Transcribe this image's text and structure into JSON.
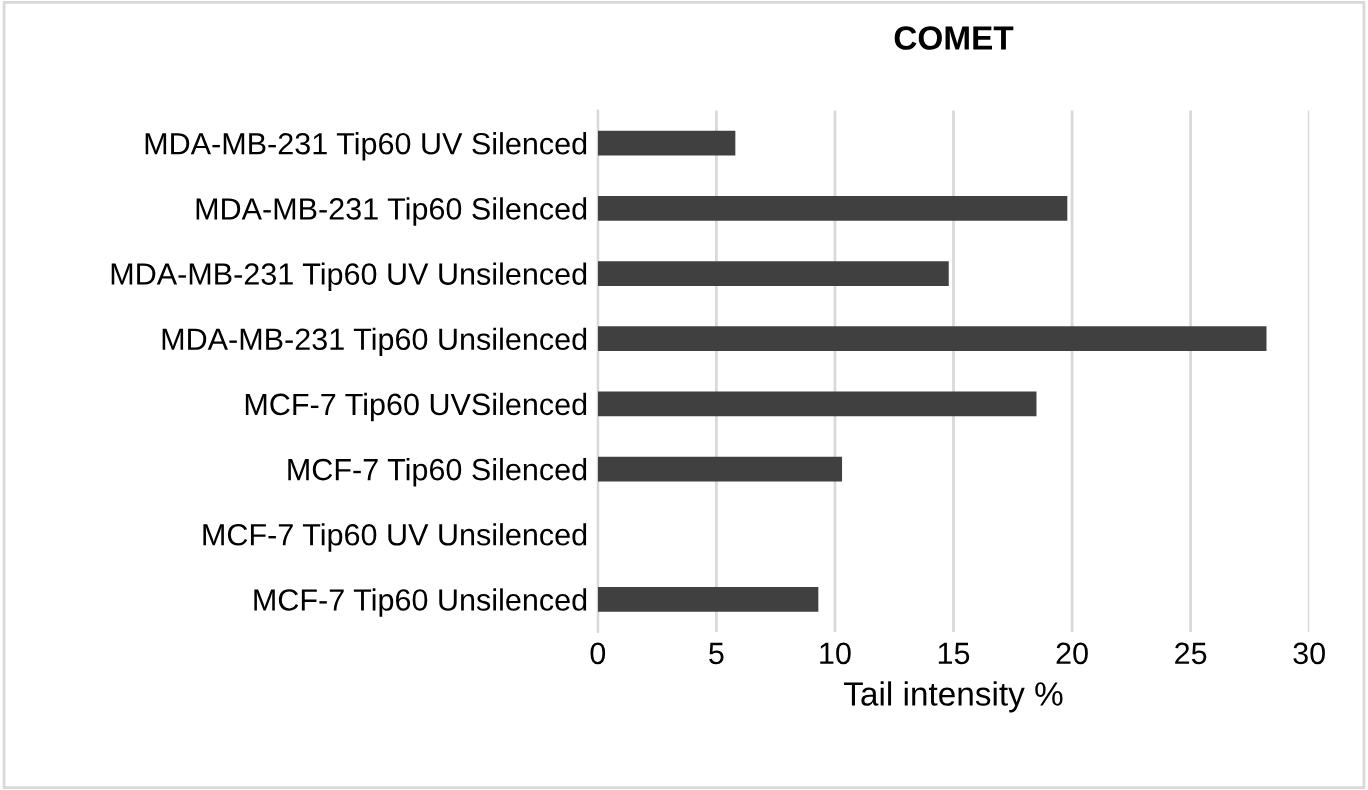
{
  "chart_data": {
    "type": "bar",
    "orientation": "horizontal",
    "title": "COMET",
    "xlabel": "Tail intensity %",
    "categories": [
      "MDA-MB-231 Tip60 UV Silenced",
      "MDA-MB-231 Tip60 Silenced",
      "MDA-MB-231 Tip60 UV Unsilenced",
      "MDA-MB-231 Tip60 Unsilenced",
      "MCF-7 Tip60 UVSilenced",
      "MCF-7 Tip60 Silenced",
      "MCF-7 Tip60 UV Unsilenced",
      "MCF-7 Tip60 Unsilenced"
    ],
    "values": [
      5.8,
      19.8,
      14.8,
      28.2,
      18.5,
      10.3,
      0,
      9.3
    ],
    "color": "#404040",
    "xlim": [
      0,
      30
    ],
    "xticks": [
      0,
      5,
      10,
      15,
      20,
      25,
      30
    ],
    "grid": "x",
    "legend": false
  }
}
